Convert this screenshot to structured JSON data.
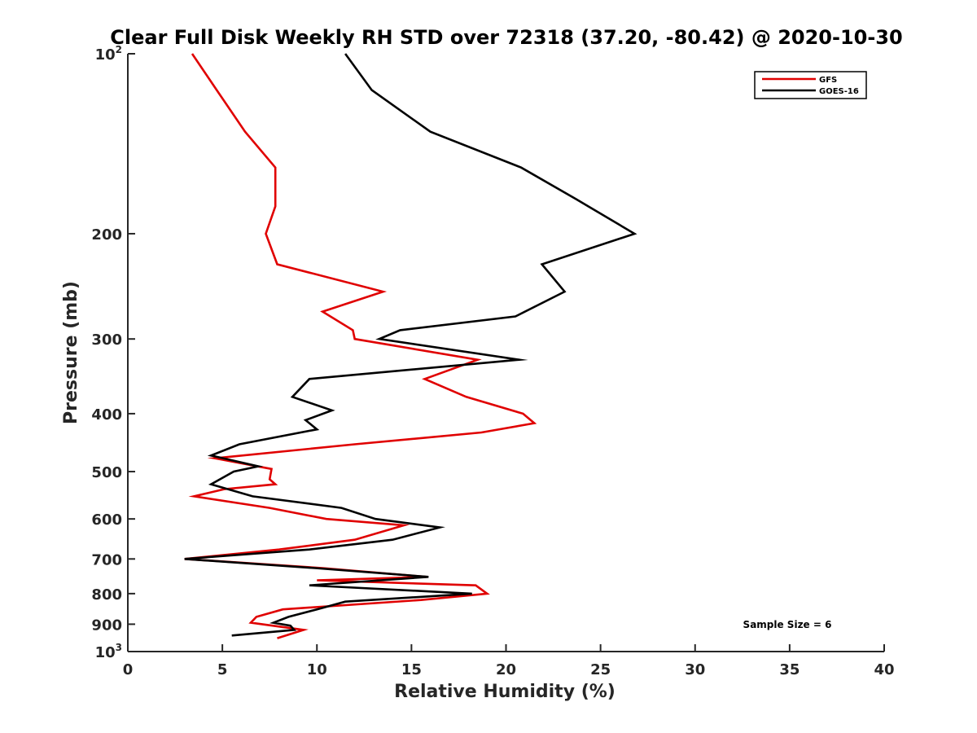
{
  "chart_data": {
    "type": "line",
    "title": "Clear Full Disk Weekly RH STD over 72318 (37.20, -80.42) @ 2020-10-30",
    "xlabel": "Relative Humidity (%)",
    "ylabel": "Pressure (mb)",
    "xlim": [
      0,
      40
    ],
    "ylim": [
      100,
      1000
    ],
    "y_scale": "log",
    "y_reversed": true,
    "x_ticks": [
      {
        "value": 0,
        "label": "0"
      },
      {
        "value": 5,
        "label": "5"
      },
      {
        "value": 10,
        "label": "10"
      },
      {
        "value": 15,
        "label": "15"
      },
      {
        "value": 20,
        "label": "20"
      },
      {
        "value": 25,
        "label": "25"
      },
      {
        "value": 30,
        "label": "30"
      },
      {
        "value": 35,
        "label": "35"
      },
      {
        "value": 40,
        "label": "40"
      }
    ],
    "y_ticks": [
      {
        "value": 100,
        "base": "10",
        "exp": "2"
      },
      {
        "value": 200,
        "label": "200"
      },
      {
        "value": 300,
        "label": "300"
      },
      {
        "value": 400,
        "label": "400"
      },
      {
        "value": 500,
        "label": "500"
      },
      {
        "value": 600,
        "label": "600"
      },
      {
        "value": 700,
        "label": "700"
      },
      {
        "value": 800,
        "label": "800"
      },
      {
        "value": 900,
        "label": "900"
      },
      {
        "value": 1000,
        "base": "10",
        "exp": "3"
      }
    ],
    "legend_position": "top-right",
    "annotation": "Sample Size = 6",
    "series": [
      {
        "name": "GFS",
        "color": "#e00000",
        "points": [
          [
            3.4,
            100
          ],
          [
            4.7,
            115
          ],
          [
            6.2,
            135
          ],
          [
            7.8,
            155
          ],
          [
            7.8,
            180
          ],
          [
            7.3,
            200
          ],
          [
            7.9,
            225
          ],
          [
            13.5,
            250
          ],
          [
            10.3,
            270
          ],
          [
            11.9,
            290
          ],
          [
            12.0,
            300
          ],
          [
            18.5,
            325
          ],
          [
            15.7,
            350
          ],
          [
            17.9,
            375
          ],
          [
            20.9,
            400
          ],
          [
            21.5,
            415
          ],
          [
            18.7,
            430
          ],
          [
            12.0,
            450
          ],
          [
            4.6,
            475
          ],
          [
            7.6,
            495
          ],
          [
            7.5,
            515
          ],
          [
            7.8,
            525
          ],
          [
            5.1,
            535
          ],
          [
            3.5,
            550
          ],
          [
            7.5,
            575
          ],
          [
            10.5,
            600
          ],
          [
            14.6,
            615
          ],
          [
            12.0,
            650
          ],
          [
            8.0,
            675
          ],
          [
            3.0,
            700
          ],
          [
            10.3,
            725
          ],
          [
            15.8,
            750
          ],
          [
            10.0,
            760
          ],
          [
            18.4,
            775
          ],
          [
            19.0,
            800
          ],
          [
            15.5,
            820
          ],
          [
            8.2,
            850
          ],
          [
            6.8,
            875
          ],
          [
            6.5,
            895
          ],
          [
            9.3,
            920
          ],
          [
            7.9,
            950
          ]
        ]
      },
      {
        "name": "GOES-16",
        "color": "#000000",
        "points": [
          [
            11.5,
            100
          ],
          [
            12.9,
            115
          ],
          [
            16.0,
            135
          ],
          [
            20.8,
            155
          ],
          [
            23.7,
            175
          ],
          [
            26.8,
            200
          ],
          [
            21.9,
            225
          ],
          [
            23.1,
            250
          ],
          [
            20.5,
            275
          ],
          [
            14.4,
            290
          ],
          [
            13.3,
            300
          ],
          [
            20.7,
            325
          ],
          [
            9.6,
            350
          ],
          [
            8.7,
            375
          ],
          [
            10.8,
            395
          ],
          [
            9.4,
            410
          ],
          [
            10.0,
            425
          ],
          [
            5.9,
            450
          ],
          [
            4.4,
            470
          ],
          [
            6.9,
            490
          ],
          [
            5.6,
            500
          ],
          [
            4.4,
            525
          ],
          [
            6.6,
            550
          ],
          [
            11.3,
            575
          ],
          [
            13.1,
            600
          ],
          [
            16.5,
            620
          ],
          [
            14.0,
            650
          ],
          [
            9.6,
            675
          ],
          [
            3.0,
            700
          ],
          [
            9.9,
            725
          ],
          [
            15.9,
            750
          ],
          [
            9.6,
            775
          ],
          [
            18.2,
            800
          ],
          [
            11.5,
            825
          ],
          [
            10.0,
            850
          ],
          [
            8.5,
            875
          ],
          [
            7.7,
            895
          ],
          [
            8.6,
            905
          ],
          [
            8.8,
            920
          ],
          [
            5.5,
            940
          ]
        ]
      }
    ]
  }
}
